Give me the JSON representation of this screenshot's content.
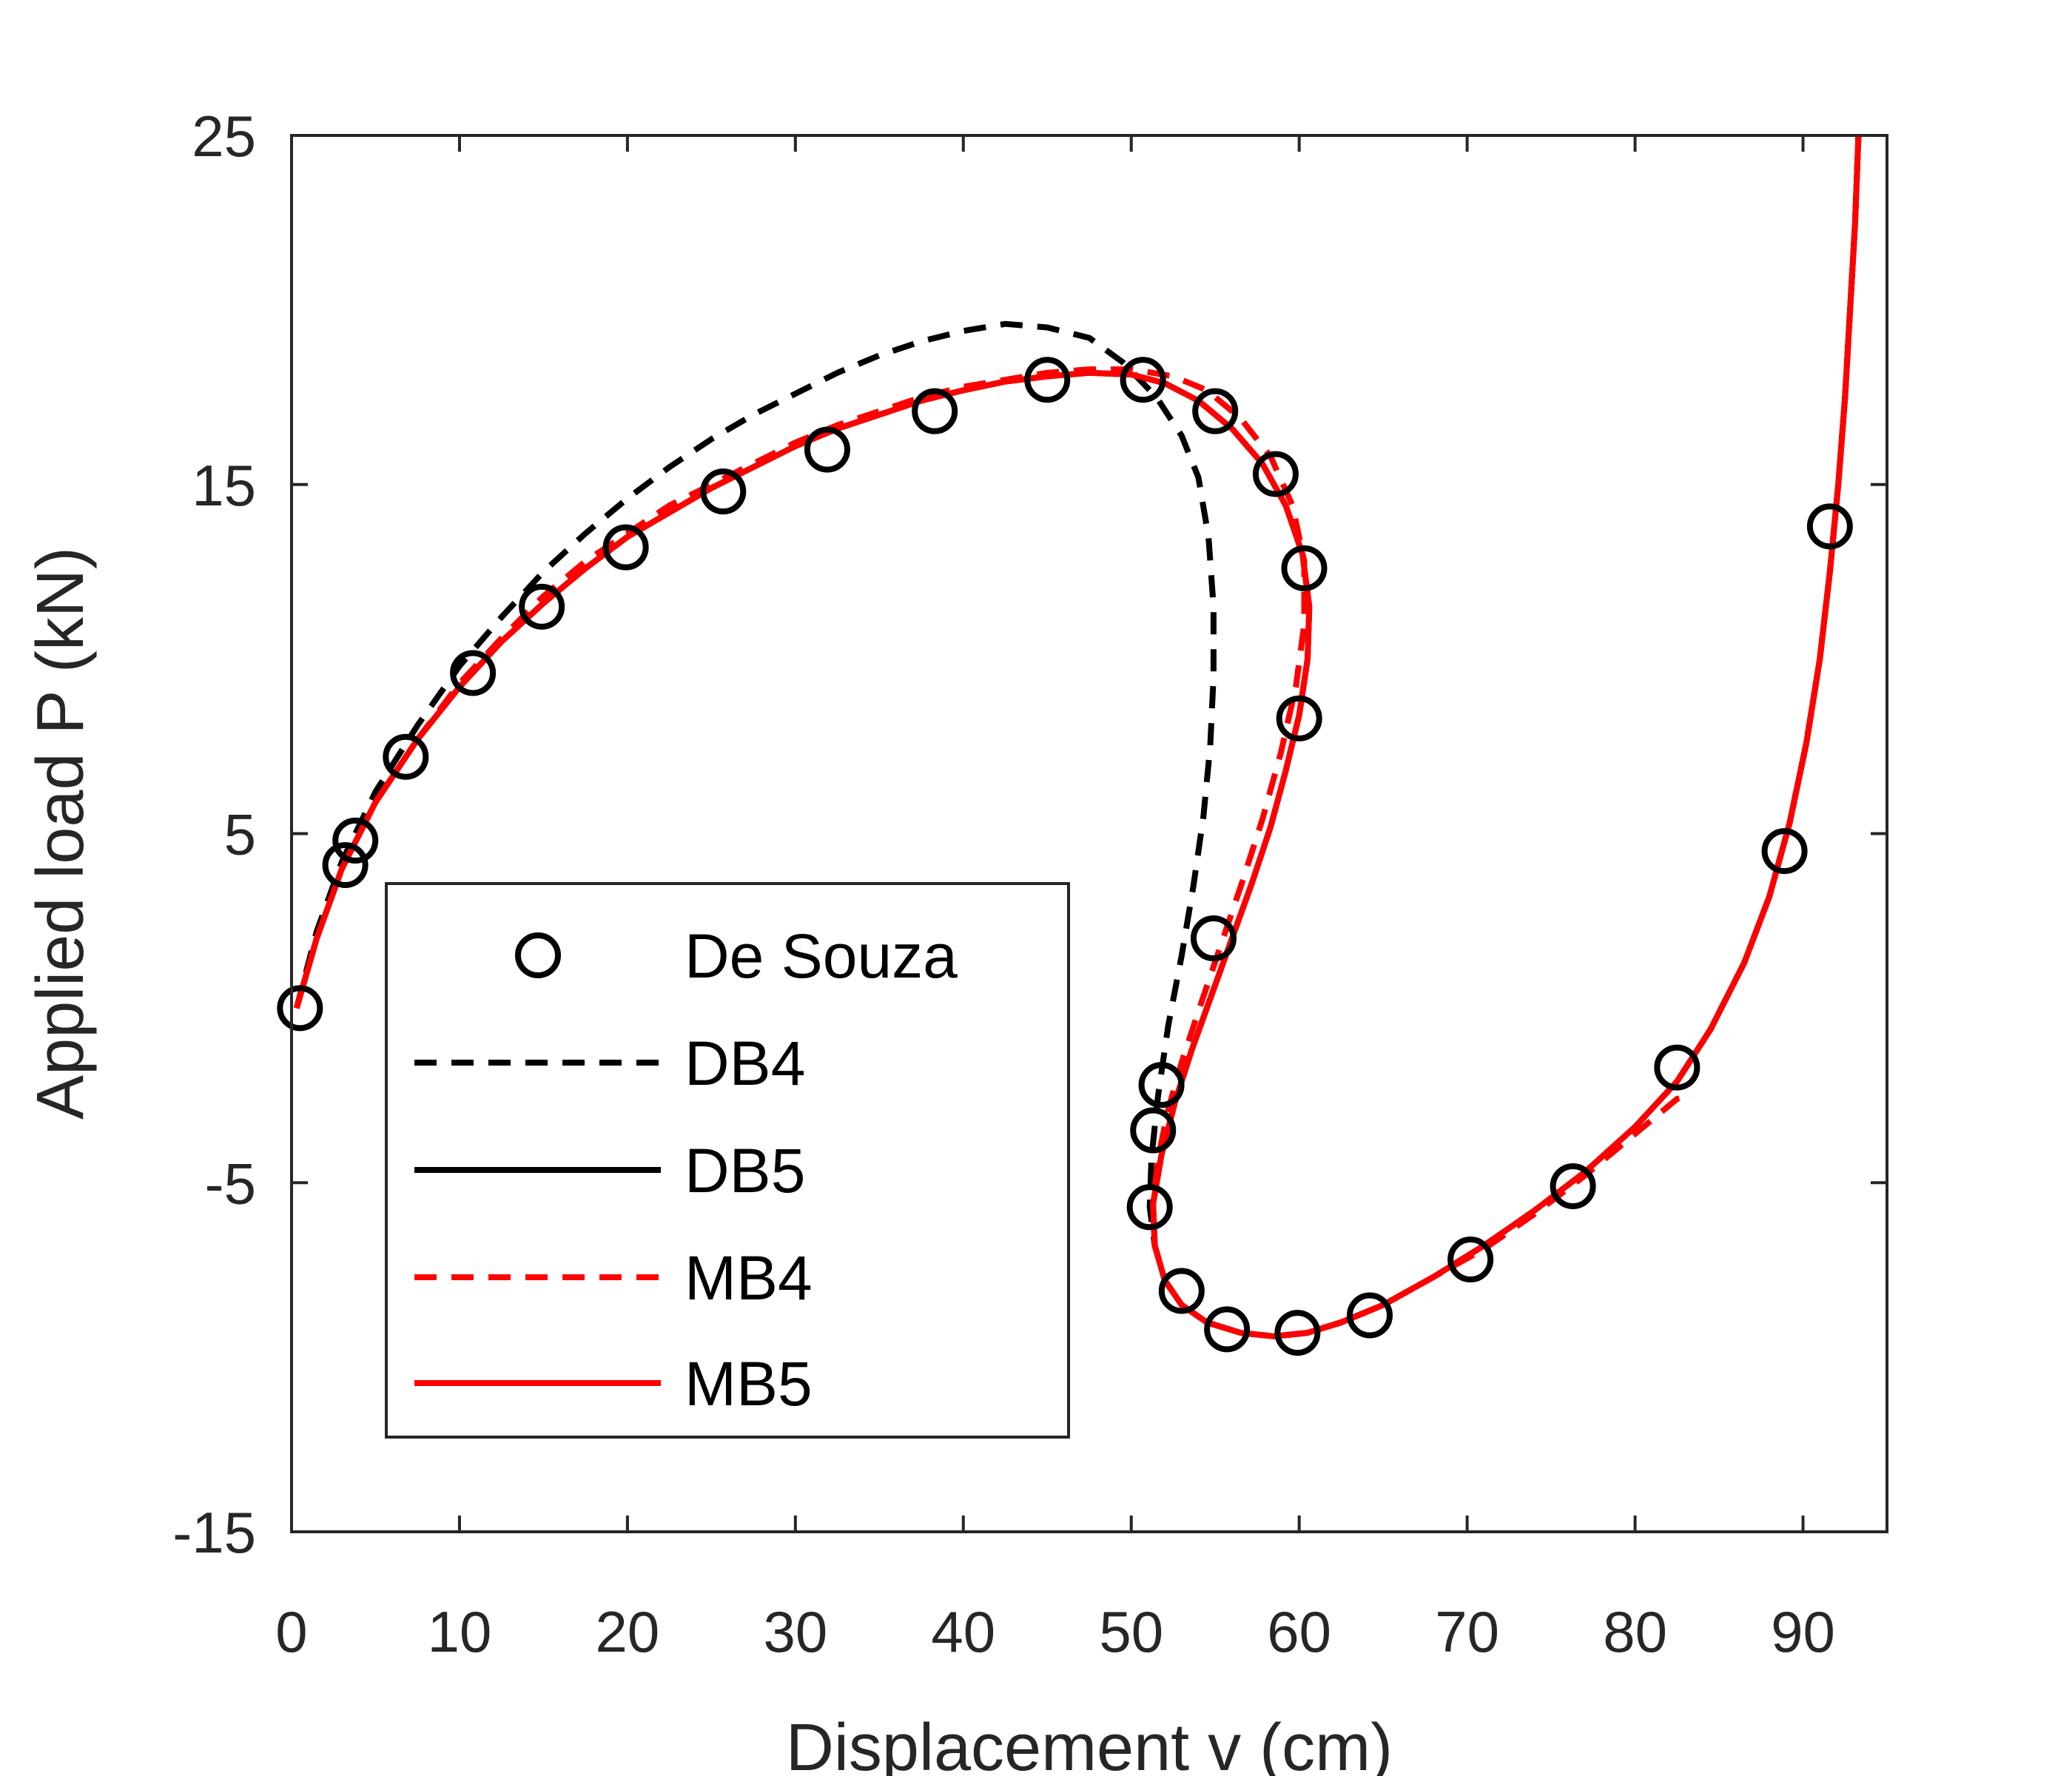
{
  "chart_data": {
    "type": "line",
    "title": "",
    "xlabel": "Displacement v (cm)",
    "ylabel": "Applied load P (kN)",
    "xlim": [
      0,
      95
    ],
    "ylim": [
      -15,
      25
    ],
    "xticks": [
      0,
      10,
      20,
      30,
      40,
      50,
      60,
      70,
      80,
      90
    ],
    "yticks": [
      -15,
      -5,
      5,
      15,
      25
    ],
    "grid": false,
    "legend_position": "bottom-left",
    "series": [
      {
        "name": "De Souza",
        "style": "markers-circle",
        "color": "#000000",
        "points": [
          [
            0.5,
            0.0
          ],
          [
            3.2,
            4.1
          ],
          [
            3.8,
            4.8
          ],
          [
            6.8,
            7.2
          ],
          [
            10.8,
            9.6
          ],
          [
            14.9,
            11.5
          ],
          [
            19.9,
            13.2
          ],
          [
            25.7,
            14.8
          ],
          [
            31.9,
            16.0
          ],
          [
            38.3,
            17.1
          ],
          [
            45.0,
            18.0
          ],
          [
            50.7,
            18.0
          ],
          [
            55.0,
            17.1
          ],
          [
            58.6,
            15.3
          ],
          [
            60.3,
            12.6
          ],
          [
            60.0,
            8.3
          ],
          [
            54.9,
            2.0
          ],
          [
            51.8,
            -2.2
          ],
          [
            51.3,
            -3.5
          ],
          [
            51.1,
            -5.7
          ],
          [
            53.0,
            -8.1
          ],
          [
            55.7,
            -9.2
          ],
          [
            59.9,
            -9.3
          ],
          [
            64.2,
            -8.8
          ],
          [
            70.2,
            -7.2
          ],
          [
            76.3,
            -5.1
          ],
          [
            82.5,
            -1.7
          ],
          [
            88.9,
            4.5
          ],
          [
            91.6,
            13.8
          ]
        ]
      },
      {
        "name": "DB4",
        "style": "dashed",
        "color": "#000000",
        "points": [
          [
            0.3,
            0.0
          ],
          [
            1.5,
            2.2
          ],
          [
            3.0,
            4.2
          ],
          [
            5.0,
            6.2
          ],
          [
            7.5,
            8.1
          ],
          [
            10.0,
            9.8
          ],
          [
            12.5,
            11.2
          ],
          [
            15.0,
            12.5
          ],
          [
            17.5,
            13.6
          ],
          [
            20.0,
            14.6
          ],
          [
            22.5,
            15.5
          ],
          [
            25.0,
            16.3
          ],
          [
            27.5,
            17.0
          ],
          [
            30.0,
            17.6
          ],
          [
            32.5,
            18.2
          ],
          [
            35.0,
            18.7
          ],
          [
            37.5,
            19.1
          ],
          [
            40.0,
            19.4
          ],
          [
            42.5,
            19.6
          ],
          [
            45.0,
            19.5
          ],
          [
            47.5,
            19.2
          ],
          [
            49.5,
            18.5
          ],
          [
            51.5,
            17.5
          ],
          [
            53.0,
            16.4
          ],
          [
            54.0,
            15.2
          ],
          [
            54.6,
            13.5
          ],
          [
            54.9,
            11.5
          ],
          [
            54.9,
            9.5
          ],
          [
            54.7,
            7.5
          ],
          [
            54.3,
            5.5
          ],
          [
            53.7,
            3.5
          ],
          [
            53.0,
            1.5
          ],
          [
            52.2,
            -0.5
          ],
          [
            51.6,
            -2.5
          ],
          [
            51.2,
            -4.3
          ],
          [
            51.1,
            -5.7
          ],
          [
            51.4,
            -6.8
          ],
          [
            52.0,
            -7.8
          ],
          [
            53.0,
            -8.5
          ],
          [
            54.5,
            -9.0
          ],
          [
            56.5,
            -9.3
          ],
          [
            58.5,
            -9.4
          ],
          [
            60.5,
            -9.3
          ],
          [
            62.5,
            -9.0
          ],
          [
            65.0,
            -8.5
          ],
          [
            68.0,
            -7.7
          ],
          [
            71.0,
            -6.8
          ],
          [
            74.0,
            -5.8
          ],
          [
            77.0,
            -4.7
          ],
          [
            80.0,
            -3.4
          ],
          [
            82.5,
            -2.1
          ],
          [
            84.5,
            -0.6
          ],
          [
            86.5,
            1.3
          ],
          [
            88.0,
            3.2
          ],
          [
            89.2,
            5.3
          ],
          [
            90.2,
            7.6
          ],
          [
            91.0,
            10.0
          ],
          [
            91.6,
            12.5
          ],
          [
            92.1,
            15.0
          ],
          [
            92.5,
            17.5
          ],
          [
            92.8,
            20.0
          ],
          [
            93.1,
            22.5
          ],
          [
            93.3,
            25.0
          ]
        ]
      },
      {
        "name": "DB5",
        "style": "solid",
        "color": "#000000",
        "points": [
          [
            0.3,
            0.0
          ],
          [
            1.5,
            2.0
          ],
          [
            3.0,
            4.0
          ],
          [
            5.0,
            5.9
          ],
          [
            7.5,
            7.7
          ],
          [
            10.0,
            9.2
          ],
          [
            12.5,
            10.5
          ],
          [
            15.0,
            11.6
          ],
          [
            17.5,
            12.6
          ],
          [
            20.0,
            13.5
          ],
          [
            22.5,
            14.2
          ],
          [
            25.0,
            14.9
          ],
          [
            27.5,
            15.5
          ],
          [
            30.0,
            16.1
          ],
          [
            32.5,
            16.6
          ],
          [
            35.0,
            17.0
          ],
          [
            37.5,
            17.4
          ],
          [
            40.0,
            17.7
          ],
          [
            42.5,
            17.95
          ],
          [
            45.0,
            18.1
          ],
          [
            47.5,
            18.2
          ],
          [
            50.0,
            18.15
          ],
          [
            52.0,
            17.9
          ],
          [
            54.0,
            17.4
          ],
          [
            56.0,
            16.6
          ],
          [
            57.8,
            15.6
          ],
          [
            59.2,
            14.4
          ],
          [
            60.2,
            13.0
          ],
          [
            60.6,
            11.5
          ],
          [
            60.5,
            10.0
          ],
          [
            60.0,
            8.4
          ],
          [
            59.2,
            6.8
          ],
          [
            58.3,
            5.2
          ],
          [
            57.2,
            3.6
          ],
          [
            56.0,
            2.0
          ],
          [
            54.8,
            0.4
          ],
          [
            53.6,
            -1.2
          ],
          [
            52.6,
            -2.7
          ],
          [
            51.8,
            -4.2
          ],
          [
            51.3,
            -5.6
          ],
          [
            51.4,
            -6.8
          ],
          [
            52.0,
            -7.8
          ],
          [
            53.0,
            -8.5
          ],
          [
            54.5,
            -9.0
          ],
          [
            56.5,
            -9.3
          ],
          [
            58.5,
            -9.4
          ],
          [
            60.5,
            -9.3
          ],
          [
            62.5,
            -9.0
          ],
          [
            65.0,
            -8.5
          ],
          [
            68.0,
            -7.7
          ],
          [
            71.0,
            -6.8
          ],
          [
            74.0,
            -5.8
          ],
          [
            77.0,
            -4.7
          ],
          [
            80.0,
            -3.4
          ],
          [
            82.5,
            -2.1
          ],
          [
            84.5,
            -0.6
          ],
          [
            86.5,
            1.3
          ],
          [
            88.0,
            3.2
          ],
          [
            89.2,
            5.3
          ],
          [
            90.2,
            7.6
          ],
          [
            91.0,
            10.0
          ],
          [
            91.6,
            12.5
          ],
          [
            92.1,
            15.0
          ],
          [
            92.5,
            17.5
          ],
          [
            92.8,
            20.0
          ],
          [
            93.1,
            22.5
          ],
          [
            93.3,
            25.0
          ]
        ]
      },
      {
        "name": "MB4",
        "style": "dashed",
        "color": "#ff0000",
        "points": [
          [
            0.3,
            0.0
          ],
          [
            1.5,
            2.0
          ],
          [
            3.0,
            4.0
          ],
          [
            5.0,
            5.9
          ],
          [
            7.5,
            7.7
          ],
          [
            10.0,
            9.3
          ],
          [
            12.5,
            10.6
          ],
          [
            15.0,
            11.8
          ],
          [
            17.5,
            12.8
          ],
          [
            20.0,
            13.6
          ],
          [
            22.5,
            14.4
          ],
          [
            25.0,
            15.0
          ],
          [
            27.5,
            15.6
          ],
          [
            30.0,
            16.2
          ],
          [
            32.5,
            16.7
          ],
          [
            35.0,
            17.1
          ],
          [
            37.5,
            17.5
          ],
          [
            40.0,
            17.8
          ],
          [
            42.5,
            18.0
          ],
          [
            45.0,
            18.2
          ],
          [
            47.5,
            18.3
          ],
          [
            50.0,
            18.3
          ],
          [
            52.5,
            18.1
          ],
          [
            54.5,
            17.7
          ],
          [
            56.5,
            16.9
          ],
          [
            58.3,
            15.8
          ],
          [
            59.6,
            14.4
          ],
          [
            60.3,
            12.8
          ],
          [
            60.3,
            11.0
          ],
          [
            59.8,
            9.2
          ],
          [
            58.9,
            7.3
          ],
          [
            57.8,
            5.4
          ],
          [
            56.6,
            3.6
          ],
          [
            55.4,
            1.9
          ],
          [
            54.2,
            0.2
          ],
          [
            53.1,
            -1.4
          ],
          [
            52.2,
            -2.9
          ],
          [
            51.6,
            -4.3
          ],
          [
            51.3,
            -5.6
          ],
          [
            51.4,
            -6.8
          ],
          [
            52.0,
            -7.8
          ],
          [
            53.0,
            -8.5
          ],
          [
            54.5,
            -9.0
          ],
          [
            56.5,
            -9.3
          ],
          [
            58.5,
            -9.4
          ],
          [
            60.5,
            -9.3
          ],
          [
            62.5,
            -9.0
          ],
          [
            65.0,
            -8.5
          ],
          [
            68.0,
            -7.7
          ],
          [
            71.0,
            -6.9
          ],
          [
            74.0,
            -5.9
          ],
          [
            77.0,
            -4.8
          ],
          [
            80.0,
            -3.6
          ],
          [
            82.5,
            -2.6
          ],
          [
            83.5,
            -2.5
          ]
        ]
      },
      {
        "name": "MB5",
        "style": "solid",
        "color": "#ff0000",
        "points": [
          [
            0.3,
            0.0
          ],
          [
            1.5,
            2.0
          ],
          [
            3.0,
            4.0
          ],
          [
            5.0,
            5.9
          ],
          [
            7.5,
            7.7
          ],
          [
            10.0,
            9.2
          ],
          [
            12.5,
            10.5
          ],
          [
            15.0,
            11.6
          ],
          [
            17.5,
            12.6
          ],
          [
            20.0,
            13.5
          ],
          [
            22.5,
            14.2
          ],
          [
            25.0,
            14.9
          ],
          [
            27.5,
            15.5
          ],
          [
            30.0,
            16.1
          ],
          [
            32.5,
            16.6
          ],
          [
            35.0,
            17.0
          ],
          [
            37.5,
            17.4
          ],
          [
            40.0,
            17.7
          ],
          [
            42.5,
            17.95
          ],
          [
            45.0,
            18.1
          ],
          [
            47.5,
            18.2
          ],
          [
            50.0,
            18.15
          ],
          [
            52.0,
            17.9
          ],
          [
            54.0,
            17.4
          ],
          [
            56.0,
            16.6
          ],
          [
            57.8,
            15.6
          ],
          [
            59.2,
            14.4
          ],
          [
            60.2,
            13.0
          ],
          [
            60.6,
            11.5
          ],
          [
            60.5,
            10.0
          ],
          [
            60.0,
            8.4
          ],
          [
            59.2,
            6.8
          ],
          [
            58.3,
            5.2
          ],
          [
            57.2,
            3.6
          ],
          [
            56.0,
            2.0
          ],
          [
            54.8,
            0.4
          ],
          [
            53.6,
            -1.2
          ],
          [
            52.6,
            -2.7
          ],
          [
            51.8,
            -4.2
          ],
          [
            51.3,
            -5.6
          ],
          [
            51.4,
            -6.8
          ],
          [
            52.0,
            -7.8
          ],
          [
            53.0,
            -8.5
          ],
          [
            54.5,
            -9.0
          ],
          [
            56.5,
            -9.3
          ],
          [
            58.5,
            -9.4
          ],
          [
            60.5,
            -9.3
          ],
          [
            62.5,
            -9.0
          ],
          [
            65.0,
            -8.5
          ],
          [
            68.0,
            -7.7
          ],
          [
            71.0,
            -6.8
          ],
          [
            74.0,
            -5.8
          ],
          [
            77.0,
            -4.7
          ],
          [
            80.0,
            -3.4
          ],
          [
            82.5,
            -2.1
          ],
          [
            84.5,
            -0.6
          ],
          [
            86.5,
            1.3
          ],
          [
            88.0,
            3.2
          ],
          [
            89.2,
            5.3
          ],
          [
            90.2,
            7.6
          ],
          [
            91.0,
            10.0
          ],
          [
            91.6,
            12.5
          ],
          [
            92.1,
            15.0
          ],
          [
            92.5,
            17.5
          ],
          [
            92.8,
            20.0
          ],
          [
            93.1,
            22.5
          ],
          [
            93.3,
            25.0
          ]
        ]
      }
    ]
  }
}
